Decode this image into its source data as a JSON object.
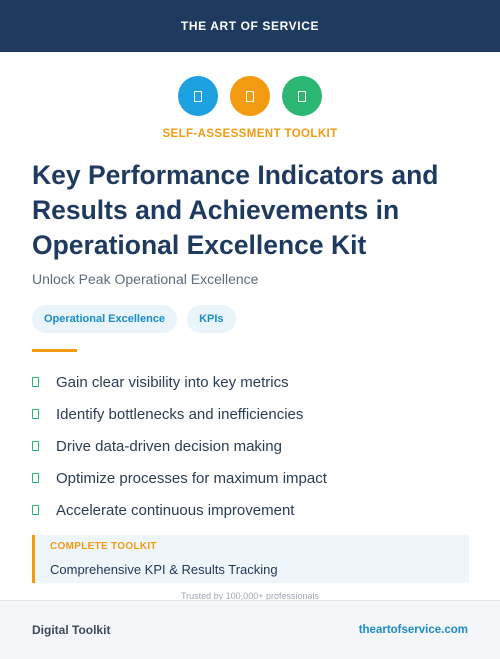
{
  "header": {
    "brand": "THE ART OF SERVICE"
  },
  "icons": [
    {
      "name": "document-icon",
      "color": "#1ea1e0"
    },
    {
      "name": "document-icon",
      "color": "#f29b11"
    },
    {
      "name": "document-icon",
      "color": "#2bb673"
    }
  ],
  "kicker": "SELF-ASSESSMENT TOOLKIT",
  "title": "Key Performance Indicators and Results and Achievements in Operational Excellence Kit",
  "subtitle": "Unlock Peak Operational Excellence",
  "tags": [
    "Operational Excellence",
    "KPIs"
  ],
  "bullets": [
    "Gain clear visibility into key metrics",
    "Identify bottlenecks and inefficiencies",
    "Drive data-driven decision making",
    "Optimize processes for maximum impact",
    "Accelerate continuous improvement"
  ],
  "callout": {
    "label": "COMPLETE TOOLKIT",
    "text": "Comprehensive KPI & Results Tracking"
  },
  "trusted": "Trusted by 100,000+ professionals",
  "footer": {
    "left": "Digital Toolkit",
    "right": "theartofservice.com"
  }
}
